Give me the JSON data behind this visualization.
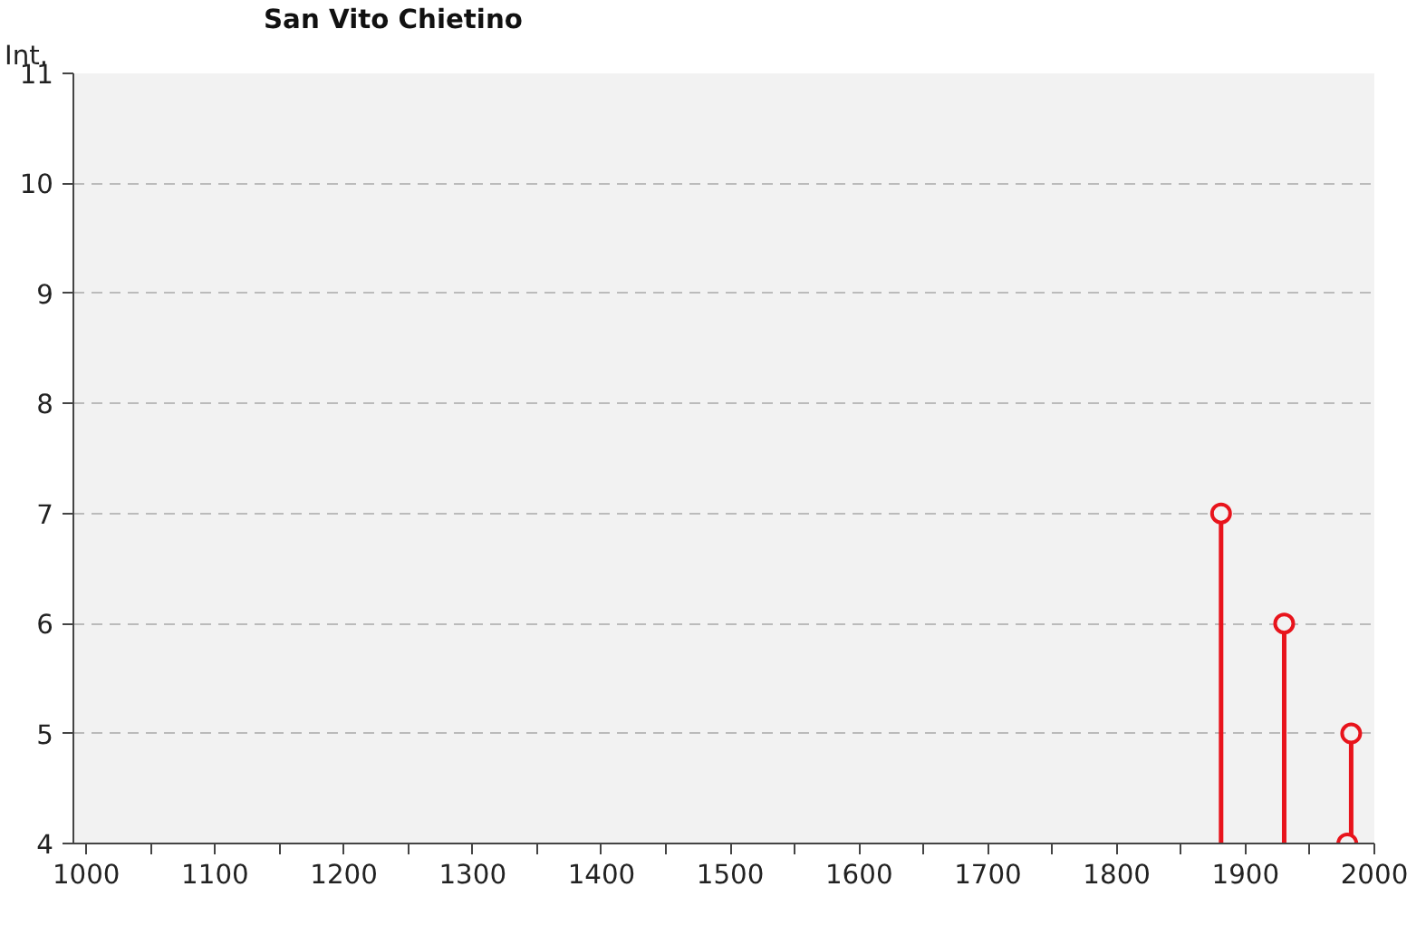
{
  "chart_data": {
    "type": "lollipop",
    "title": "San Vito Chietino",
    "ylabel": "Int.",
    "x": [
      1881,
      1930,
      1979,
      1982
    ],
    "values": [
      7,
      6,
      4,
      5
    ],
    "color": "#e8141c",
    "marker": "circle",
    "grid": "y",
    "xlim": [
      990,
      2000
    ],
    "ylim": [
      4,
      11
    ],
    "xticks": [
      1000,
      {
        "value": 1050,
        "label": null
      },
      1100,
      {
        "value": 1150,
        "label": null
      },
      1200,
      {
        "value": 1250,
        "label": null
      },
      1300,
      {
        "value": 1350,
        "label": null
      },
      1400,
      {
        "value": 1450,
        "label": null
      },
      1500,
      {
        "value": 1550,
        "label": null
      },
      1600,
      {
        "value": 1650,
        "label": null
      },
      1700,
      {
        "value": 1750,
        "label": null
      },
      1800,
      {
        "value": 1850,
        "label": null
      },
      1900,
      {
        "value": 1950,
        "label": null
      },
      2000
    ],
    "yticks": [
      4,
      5,
      6,
      7,
      8,
      9,
      10,
      11
    ]
  }
}
